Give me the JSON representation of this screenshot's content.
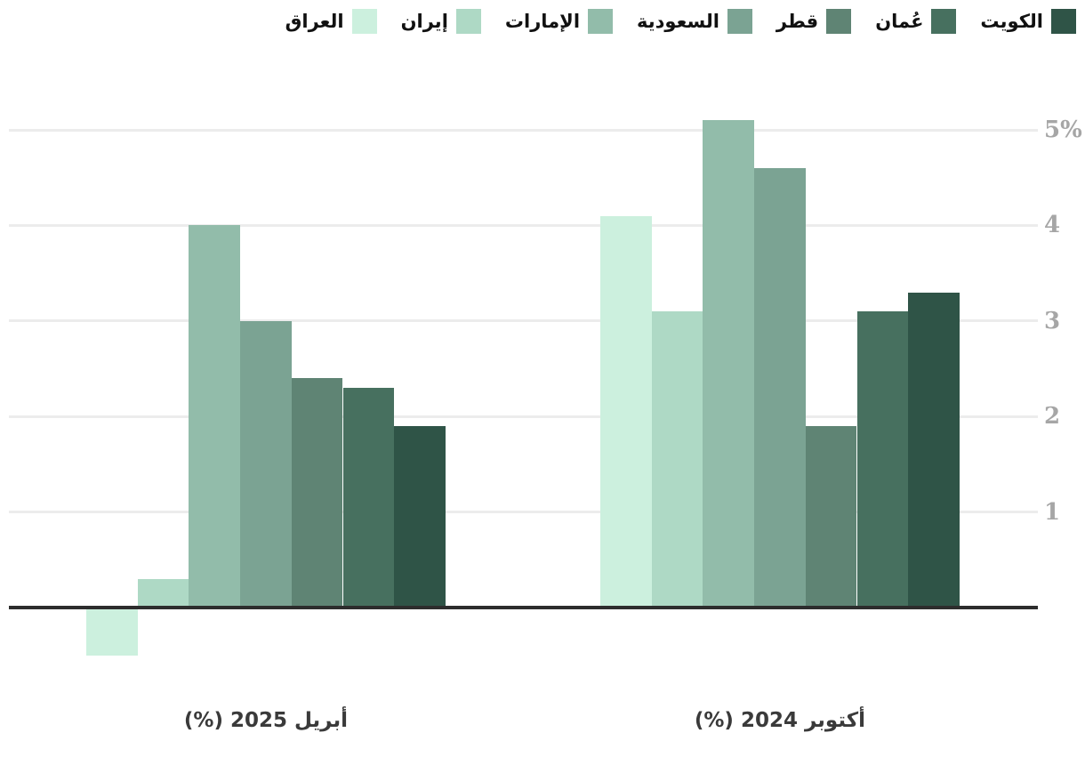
{
  "chart_data": {
    "type": "bar",
    "groups": [
      "أبريل 2025 (%)",
      "أكتوبر 2024 (%)"
    ],
    "series": [
      {
        "name": "العراق",
        "color": "#ccf0de",
        "values": [
          -0.5,
          4.1
        ]
      },
      {
        "name": "إيران",
        "color": "#aed9c5",
        "values": [
          0.3,
          3.1
        ]
      },
      {
        "name": "الإمارات",
        "color": "#92bcaa",
        "values": [
          4.0,
          5.1
        ]
      },
      {
        "name": "السعودية",
        "color": "#7ba393",
        "values": [
          3.0,
          4.6
        ]
      },
      {
        "name": "قطر",
        "color": "#5f8474",
        "values": [
          2.4,
          1.9
        ]
      },
      {
        "name": "عُمان",
        "color": "#47705f",
        "values": [
          2.3,
          3.1
        ]
      },
      {
        "name": "الكويت",
        "color": "#2f5447",
        "values": [
          1.9,
          3.3
        ]
      }
    ],
    "y_axis": {
      "ticks": [
        1,
        2,
        3,
        4,
        5
      ],
      "tick_labels": [
        "1",
        "2",
        "3",
        "4",
        "5%"
      ],
      "range": [
        -0.75,
        5.25
      ],
      "grid": true,
      "tick_side": "right"
    },
    "legend_position": "top-right",
    "title": "",
    "xlabel": "",
    "ylabel": ""
  },
  "colors": {
    "background": "#ffffff",
    "gridline": "#ececec",
    "axis_line": "#2d2d2d",
    "tick_text": "#a6a6a6",
    "group_label_text": "#3a3a3a",
    "legend_text": "#111111"
  }
}
